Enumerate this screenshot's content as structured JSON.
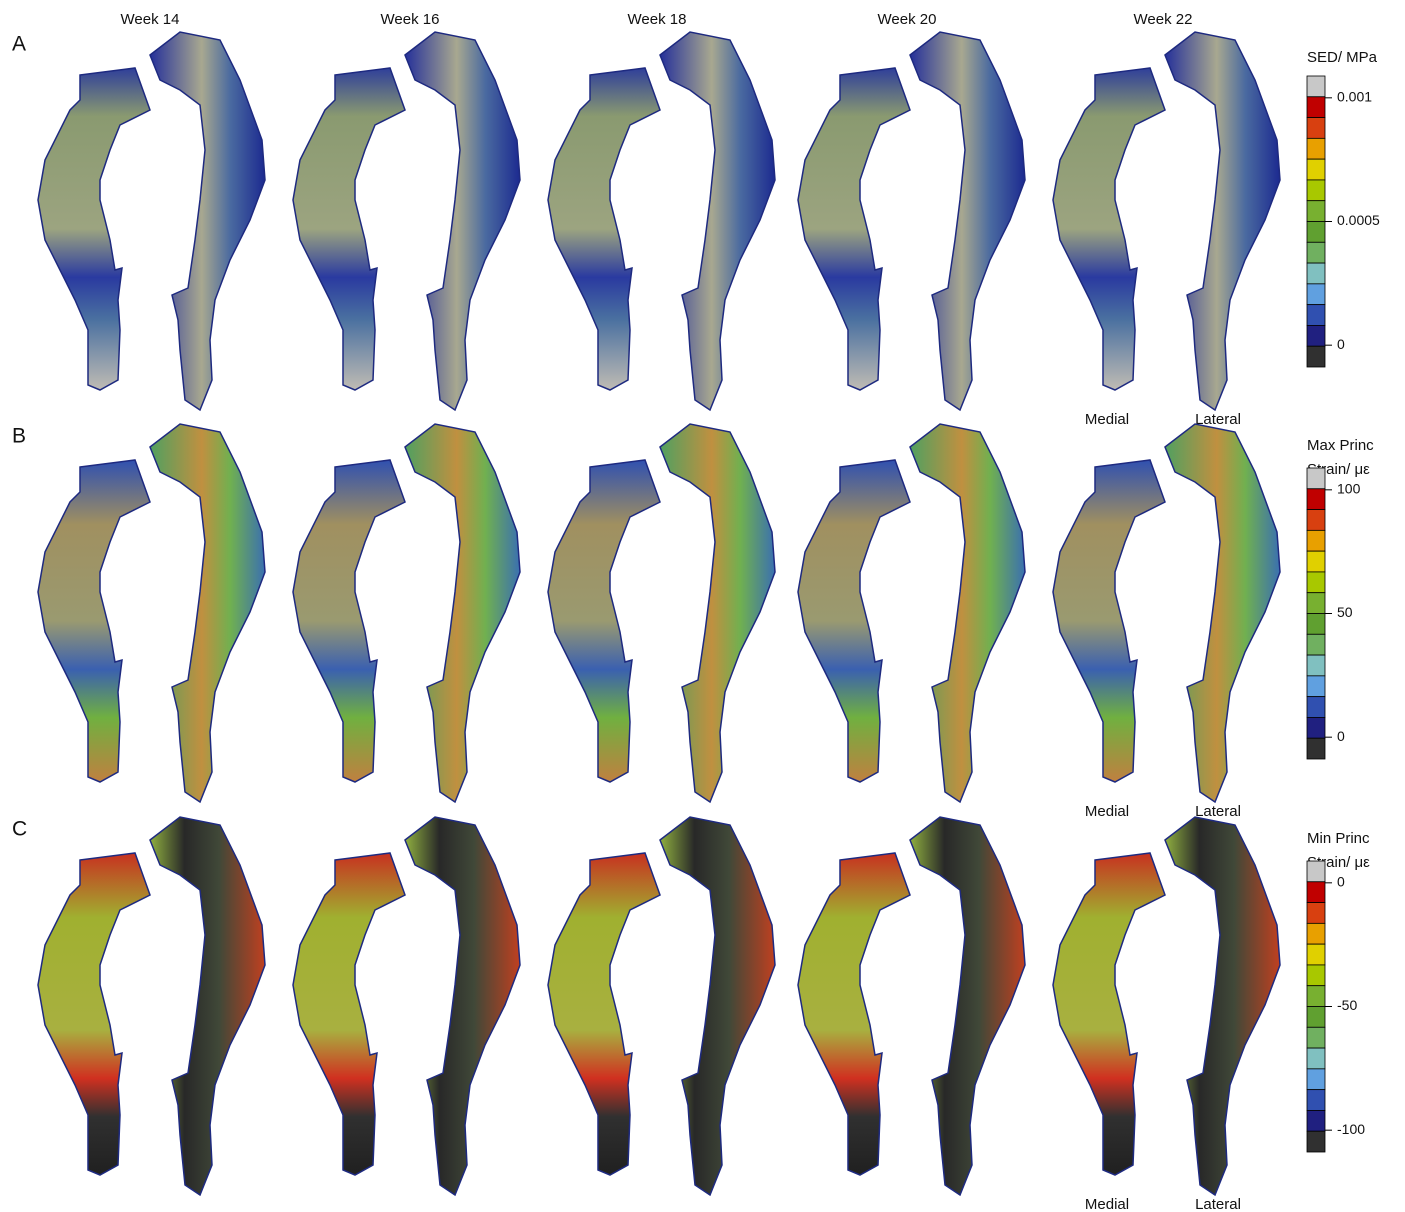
{
  "columns": [
    "Week 14",
    "Week 16",
    "Week 18",
    "Week 20",
    "Week 22"
  ],
  "rows": [
    {
      "label": "A",
      "legend": {
        "title": [
          "SED/ MPa"
        ],
        "ticks": [
          "0.001",
          "0.0005",
          "0"
        ]
      },
      "views": [
        "Medial",
        "Lateral"
      ]
    },
    {
      "label": "B",
      "legend": {
        "title": [
          "Max Princ",
          "Strain/ με"
        ],
        "ticks": [
          "100",
          "50",
          "0"
        ]
      },
      "views": [
        "Medial",
        "Lateral"
      ]
    },
    {
      "label": "C",
      "legend": {
        "title": [
          "Min Princ",
          "Strain/ με"
        ],
        "ticks": [
          "0",
          "-50",
          "-100"
        ]
      },
      "views": [
        "Medial",
        "Lateral"
      ]
    }
  ]
}
